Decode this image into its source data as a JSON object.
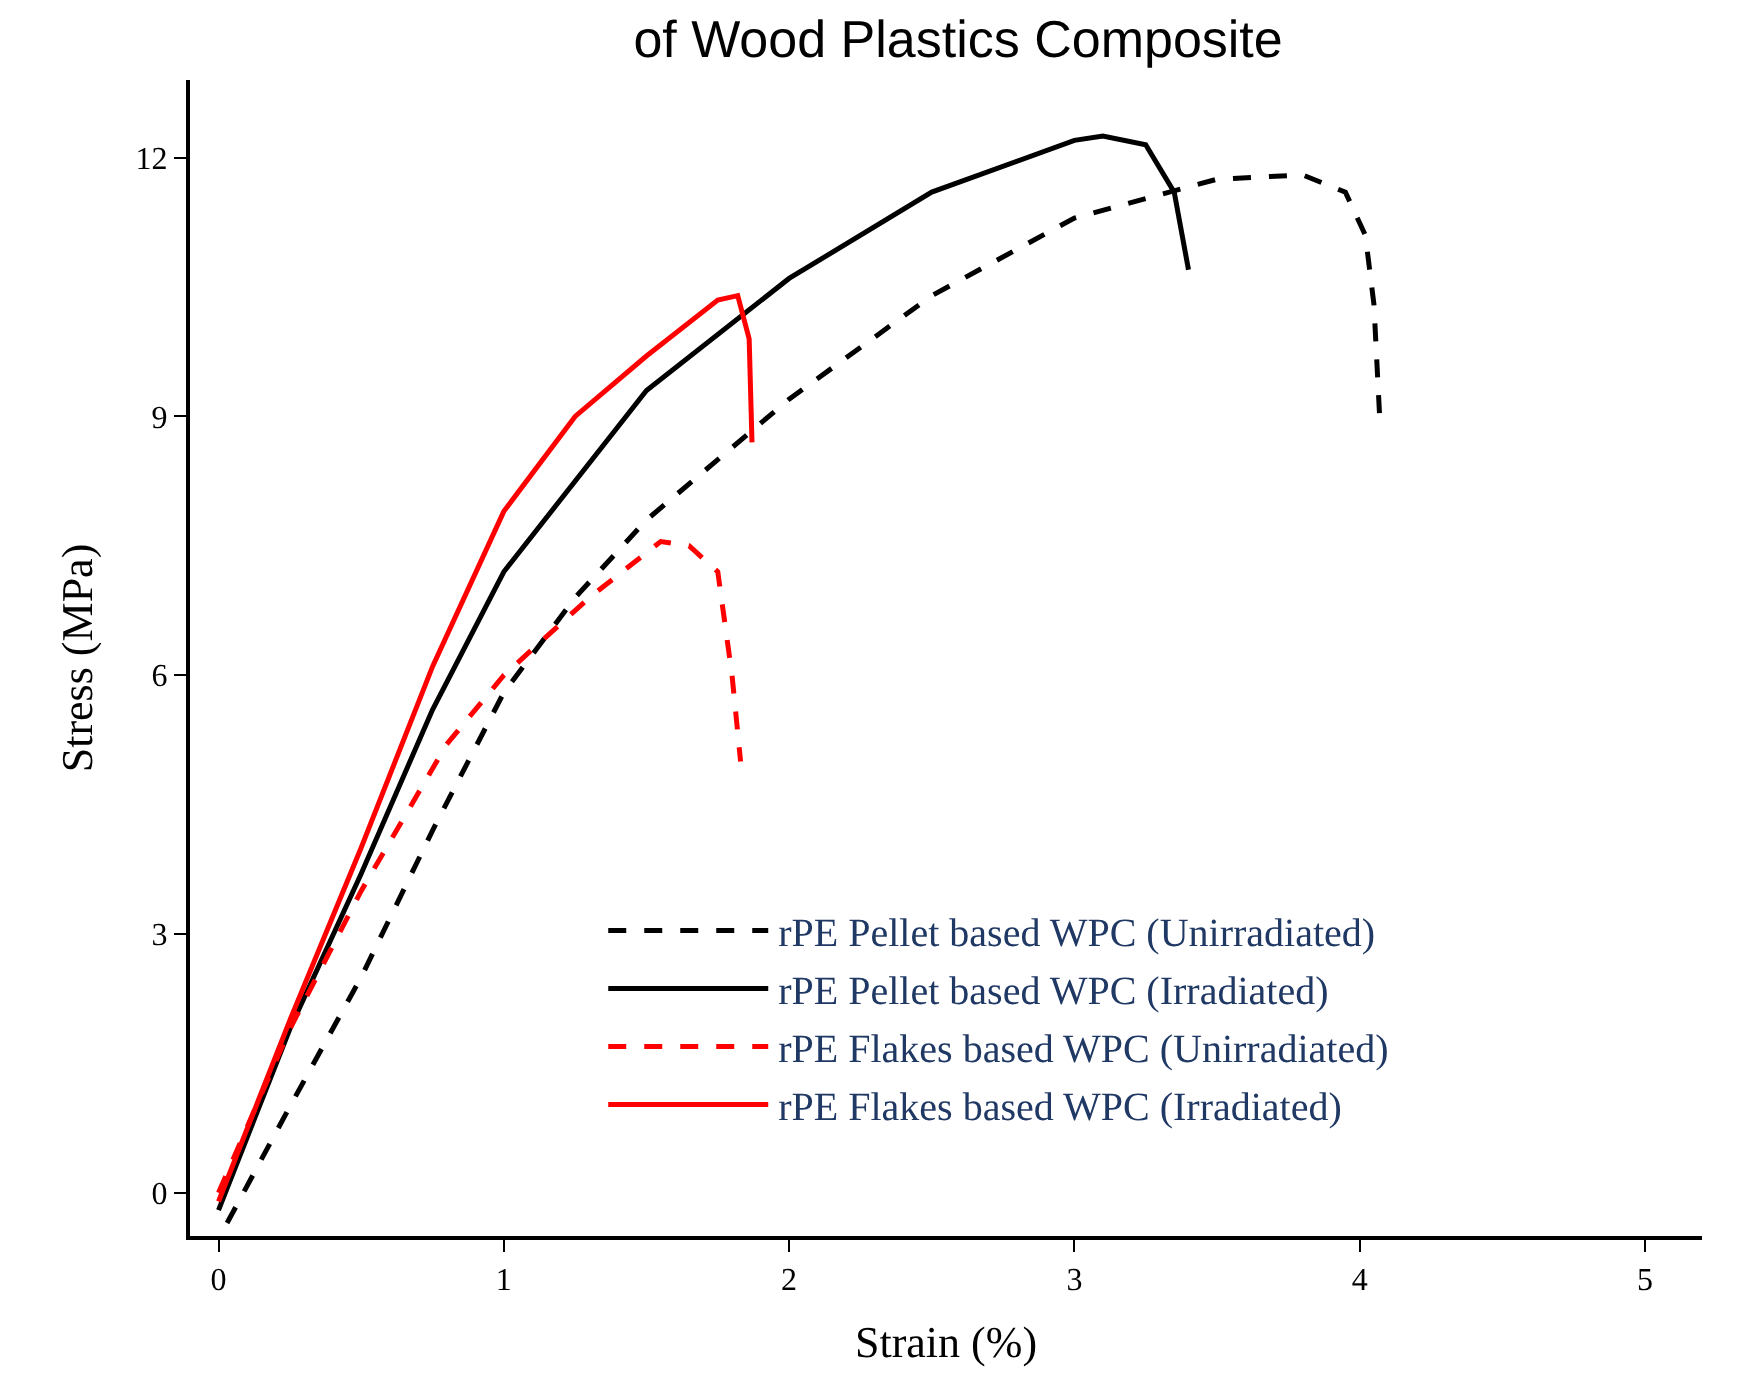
{
  "chart_data": {
    "type": "line",
    "title": "of Wood Plastics Composite",
    "xlabel": "Strain (%)",
    "ylabel": "Stress (MPa)",
    "xlim": [
      -0.1,
      5.2
    ],
    "xticks": [
      0,
      1,
      2,
      3,
      4,
      5
    ],
    "ylim": [
      -0.5,
      12.9
    ],
    "yticks": [
      0,
      3,
      6,
      9,
      12
    ],
    "grid": false,
    "legend": "bottom right",
    "marker": "none",
    "series": [
      {
        "name": "rPE Pellet based WPC (Unirradiated)",
        "color": "#000000",
        "line_style": "dashed",
        "x": [
          0.03,
          0.25,
          0.5,
          0.75,
          1.0,
          1.25,
          1.5,
          2.0,
          2.5,
          3.0,
          3.5,
          3.8,
          3.95,
          4.02,
          4.05,
          4.07
        ],
        "values": [
          -0.35,
          1.0,
          2.5,
          4.2,
          5.8,
          6.9,
          7.8,
          9.2,
          10.4,
          11.3,
          11.75,
          11.8,
          11.6,
          11.1,
          10.3,
          9.0
        ]
      },
      {
        "name": "rPE Pellet based WPC (Irradiated)",
        "color": "#000000",
        "line_style": "solid",
        "x": [
          0.0,
          0.25,
          0.5,
          0.75,
          1.0,
          1.5,
          2.0,
          2.5,
          3.0,
          3.1,
          3.25,
          3.35,
          3.4
        ],
        "values": [
          -0.2,
          1.9,
          3.7,
          5.6,
          7.2,
          9.3,
          10.6,
          11.6,
          12.2,
          12.25,
          12.15,
          11.6,
          10.7
        ]
      },
      {
        "name": "rPE Flakes based WPC (Unirradiated)",
        "color": "#ff0000",
        "line_style": "dashed",
        "x": [
          0.0,
          0.25,
          0.5,
          0.8,
          1.0,
          1.3,
          1.55,
          1.65,
          1.75,
          1.8,
          1.83
        ],
        "values": [
          0.0,
          1.9,
          3.5,
          5.2,
          6.0,
          6.9,
          7.55,
          7.5,
          7.2,
          6.0,
          5.0
        ]
      },
      {
        "name": "rPE Flakes based WPC (Irradiated)",
        "color": "#ff0000",
        "line_style": "solid",
        "x": [
          0.0,
          0.25,
          0.5,
          0.75,
          1.0,
          1.25,
          1.5,
          1.75,
          1.82,
          1.86,
          1.87
        ],
        "values": [
          -0.1,
          2.0,
          4.0,
          6.1,
          7.9,
          9.0,
          9.7,
          10.35,
          10.4,
          9.9,
          8.7
        ]
      }
    ]
  }
}
